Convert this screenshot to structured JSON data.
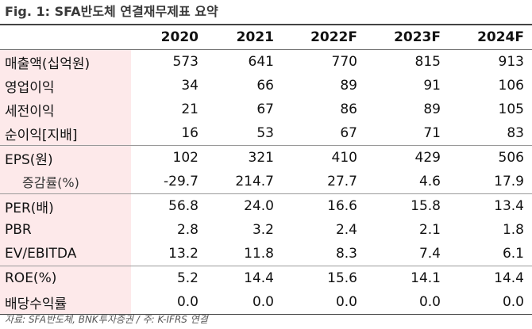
{
  "title": "Fig. 1: SFA반도체 연결재무제표 요약",
  "columns": [
    "2020",
    "2021",
    "2022F",
    "2023F",
    "2024F"
  ],
  "rows": [
    {
      "label": "매출액(십억원)",
      "values": [
        "573",
        "641",
        "770",
        "815",
        "913"
      ]
    },
    {
      "label": "영업이익",
      "values": [
        "34",
        "66",
        "89",
        "91",
        "106"
      ]
    },
    {
      "label": "세전이익",
      "values": [
        "21",
        "67",
        "86",
        "89",
        "105"
      ]
    },
    {
      "label": "순이익[지배]",
      "values": [
        "16",
        "53",
        "67",
        "71",
        "83"
      ]
    },
    {
      "label": "EPS(원)",
      "values": [
        "102",
        "321",
        "410",
        "429",
        "506"
      ]
    },
    {
      "label": "증감률(%)",
      "values": [
        "-29.7",
        "214.7",
        "27.7",
        "4.6",
        "17.9"
      ]
    },
    {
      "label": "PER(배)",
      "values": [
        "56.8",
        "24.0",
        "16.6",
        "15.8",
        "13.4"
      ]
    },
    {
      "label": "PBR",
      "values": [
        "2.8",
        "3.2",
        "2.4",
        "2.1",
        "1.8"
      ]
    },
    {
      "label": "EV/EBITDA",
      "values": [
        "13.2",
        "11.8",
        "8.3",
        "7.4",
        "6.1"
      ]
    },
    {
      "label": "ROE(%)",
      "values": [
        "5.2",
        "14.4",
        "15.6",
        "14.1",
        "14.4"
      ]
    },
    {
      "label": "배당수익률",
      "values": [
        "0.0",
        "0.0",
        "0.0",
        "0.0",
        "0.0"
      ]
    }
  ],
  "source": "자료: SFA반도체, BNK투자증권 / 주: K-IFRS 연결",
  "colors": {
    "label_bg": "#fde9ea",
    "rule": "#444444"
  }
}
